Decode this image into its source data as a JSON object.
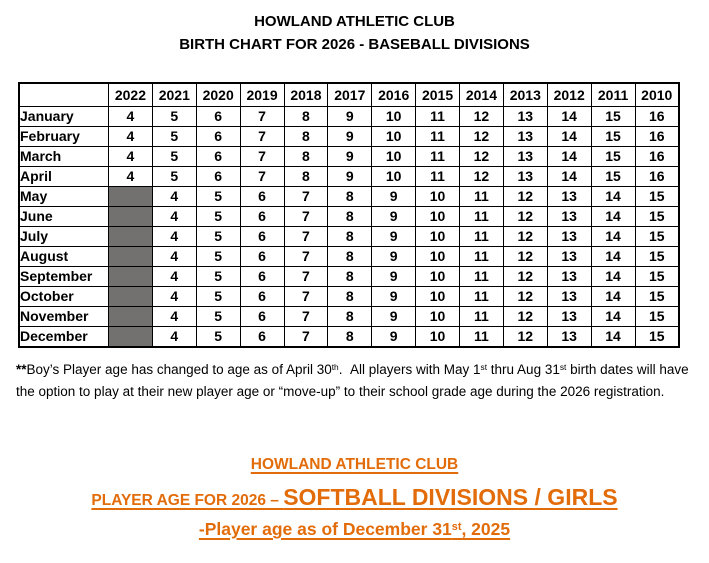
{
  "header": {
    "line1": "HOWLAND ATHLETIC CLUB",
    "line2": "BIRTH CHART FOR 2026 - BASEBALL DIVISIONS"
  },
  "birth_chart": {
    "year_headers": [
      "2022",
      "2021",
      "2020",
      "2019",
      "2018",
      "2017",
      "2016",
      "2015",
      "2014",
      "2013",
      "2012",
      "2011",
      "2010"
    ],
    "shaded_cell_color": "#737070",
    "rows": [
      {
        "month": "January",
        "ages": [
          4,
          5,
          6,
          7,
          8,
          9,
          10,
          11,
          12,
          13,
          14,
          15,
          16
        ]
      },
      {
        "month": "February",
        "ages": [
          4,
          5,
          6,
          7,
          8,
          9,
          10,
          11,
          12,
          13,
          14,
          15,
          16
        ]
      },
      {
        "month": "March",
        "ages": [
          4,
          5,
          6,
          7,
          8,
          9,
          10,
          11,
          12,
          13,
          14,
          15,
          16
        ]
      },
      {
        "month": "April",
        "ages": [
          4,
          5,
          6,
          7,
          8,
          9,
          10,
          11,
          12,
          13,
          14,
          15,
          16
        ]
      },
      {
        "month": "May",
        "ages": [
          null,
          4,
          5,
          6,
          7,
          8,
          9,
          10,
          11,
          12,
          13,
          14,
          15
        ]
      },
      {
        "month": "June",
        "ages": [
          null,
          4,
          5,
          6,
          7,
          8,
          9,
          10,
          11,
          12,
          13,
          14,
          15
        ]
      },
      {
        "month": "July",
        "ages": [
          null,
          4,
          5,
          6,
          7,
          8,
          9,
          10,
          11,
          12,
          13,
          14,
          15
        ]
      },
      {
        "month": "August",
        "ages": [
          null,
          4,
          5,
          6,
          7,
          8,
          9,
          10,
          11,
          12,
          13,
          14,
          15
        ]
      },
      {
        "month": "September",
        "ages": [
          null,
          4,
          5,
          6,
          7,
          8,
          9,
          10,
          11,
          12,
          13,
          14,
          15
        ]
      },
      {
        "month": "October",
        "ages": [
          null,
          4,
          5,
          6,
          7,
          8,
          9,
          10,
          11,
          12,
          13,
          14,
          15
        ]
      },
      {
        "month": "November",
        "ages": [
          null,
          4,
          5,
          6,
          7,
          8,
          9,
          10,
          11,
          12,
          13,
          14,
          15
        ]
      },
      {
        "month": "December",
        "ages": [
          null,
          4,
          5,
          6,
          7,
          8,
          9,
          10,
          11,
          12,
          13,
          14,
          15
        ]
      }
    ]
  },
  "footnote": {
    "stars": "**",
    "part1": "Boy’s Player age has changed to age as of April 30",
    "sup1": "th",
    "part2": ".  All players with May 1",
    "sup2": "st",
    "part3": " thru Aug 31",
    "sup3": "st",
    "part4": " birth dates will have",
    "line2": "the option to play at their new player age or “move-up” to their school grade age during the 2026 registration."
  },
  "softball": {
    "accent_color": "#E36C0A",
    "line1": "HOWLAND ATHLETIC CLUB",
    "line2_prefix": "PLAYER AGE FOR 2026 – ",
    "line2_main": "SOFTBALL DIVISIONS / GIRLS",
    "line3_part1": "-Player age as of December 31",
    "line3_sup": "st",
    "line3_part2": ", 2025"
  }
}
